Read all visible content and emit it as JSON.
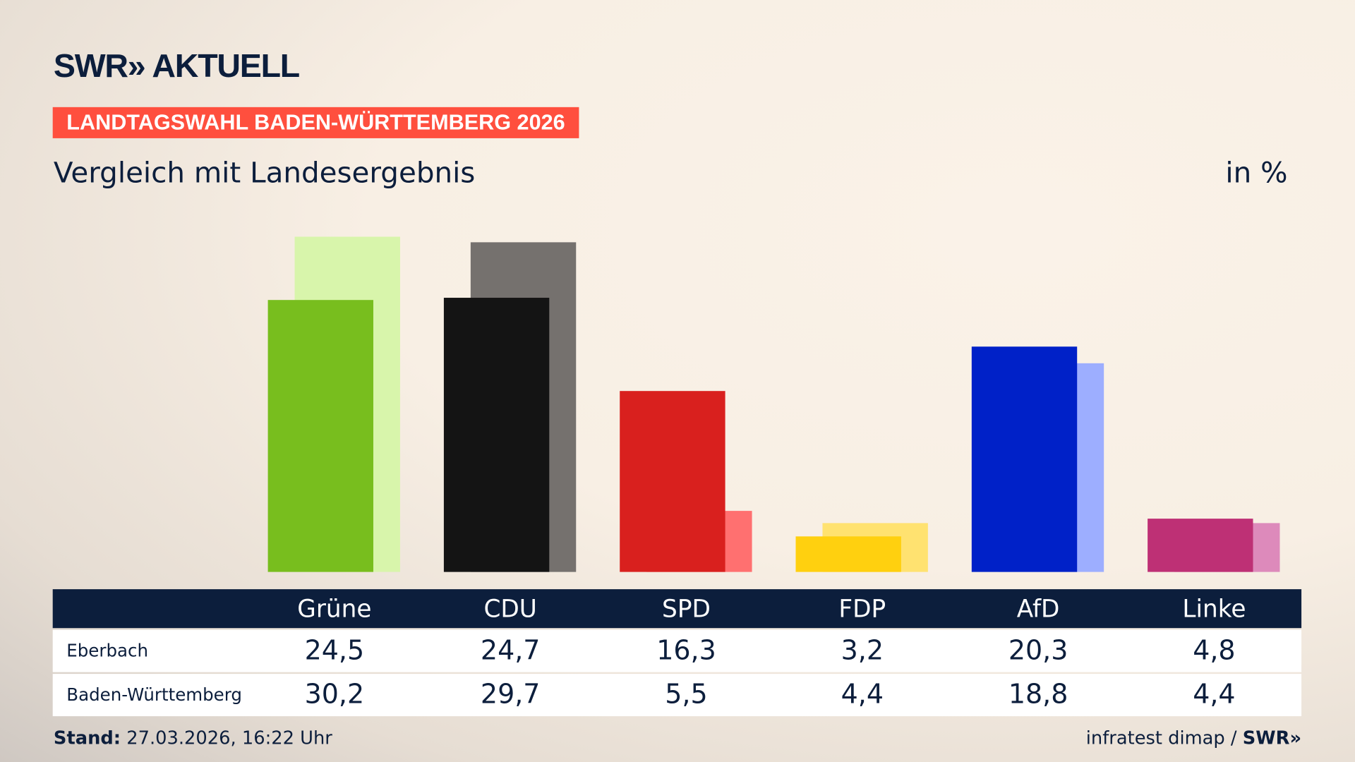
{
  "header": {
    "logo": "SWR» AKTUELL",
    "banner": "LANDTAGSWAHL BADEN-WÜRTTEMBERG 2026",
    "subtitle": "Vergleich mit Landesergebnis",
    "unit": "in %"
  },
  "chart_data": {
    "type": "bar",
    "categories": [
      "Grüne",
      "CDU",
      "SPD",
      "FDP",
      "AfD",
      "Linke"
    ],
    "series": [
      {
        "name": "Eberbach",
        "values": [
          24.5,
          24.7,
          16.3,
          3.2,
          20.3,
          4.8
        ],
        "colors": [
          "#78be1e",
          "#141414",
          "#d9201e",
          "#ffd00f",
          "#0021c8",
          "#be3075"
        ]
      },
      {
        "name": "Baden-Württemberg",
        "values": [
          30.2,
          29.7,
          5.5,
          4.4,
          18.8,
          4.4
        ],
        "colors": [
          "#d8f5ab",
          "#75716e",
          "#ff7070",
          "#ffe270",
          "#9daeff",
          "#dd8abb"
        ]
      }
    ],
    "value_labels": [
      [
        "24,5",
        "24,7",
        "16,3",
        "3,2",
        "20,3",
        "4,8"
      ],
      [
        "30,2",
        "29,7",
        "5,5",
        "4,4",
        "18,8",
        "4,4"
      ]
    ],
    "ylim": [
      0,
      30.2
    ],
    "grid": false
  },
  "footer": {
    "stand_label": "Stand:",
    "stand_value": "27.03.2026, 16:22 Uhr",
    "source": "infratest dimap / ",
    "source_logo": "SWR»"
  }
}
